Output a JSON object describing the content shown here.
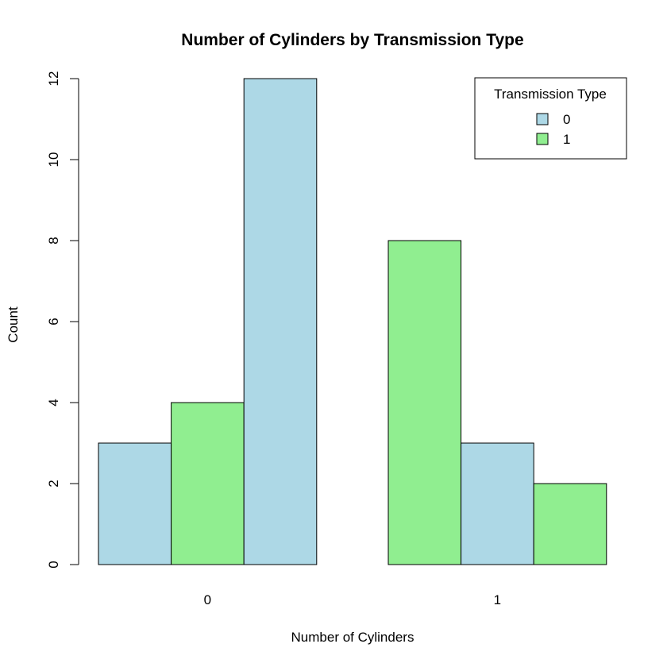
{
  "chart_data": {
    "type": "bar",
    "title": "Number of Cylinders by Transmission Type",
    "xlabel": "Number of Cylinders",
    "ylabel": "Count",
    "ylim": [
      0,
      12
    ],
    "yticks": [
      "0",
      "2",
      "4",
      "6",
      "8",
      "10",
      "12"
    ],
    "groups": [
      {
        "label": "0",
        "bars": [
          {
            "value": 3,
            "fill": "#add8e6"
          },
          {
            "value": 4,
            "fill": "#90ee90"
          },
          {
            "value": 12,
            "fill": "#add8e6"
          }
        ]
      },
      {
        "label": "1",
        "bars": [
          {
            "value": 8,
            "fill": "#90ee90"
          },
          {
            "value": 3,
            "fill": "#add8e6"
          },
          {
            "value": 2,
            "fill": "#90ee90"
          }
        ]
      }
    ],
    "legend": {
      "title": "Transmission Type",
      "position": "top-right",
      "entries": [
        {
          "label": "0",
          "color": "#add8e6"
        },
        {
          "label": "1",
          "color": "#90ee90"
        }
      ]
    },
    "grid": false
  }
}
